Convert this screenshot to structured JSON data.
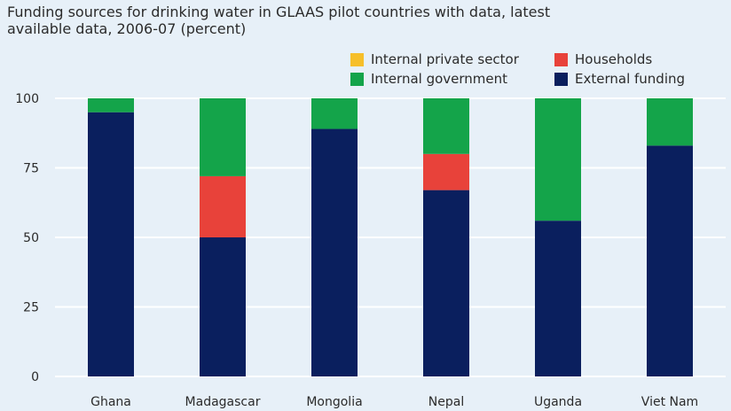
{
  "title_lines": [
    "Funding sources for drinking water in GLAAS pilot countries with data, latest",
    "available data, 2006-07 (percent)"
  ],
  "colors": {
    "internal_private": "#f6bf2a",
    "households": "#e8423a",
    "internal_government": "#14a44a",
    "external": "#0a1f5e",
    "grid": "#ffffff",
    "background": "#e7f0f8"
  },
  "chart_data": {
    "type": "bar",
    "stacked": true,
    "title": "Funding sources for drinking water in GLAAS pilot countries with data, latest available data, 2006-07 (percent)",
    "categories": [
      "Ghana",
      "Madagascar",
      "Mongolia",
      "Nepal",
      "Uganda",
      "Viet Nam"
    ],
    "series": [
      {
        "name": "External funding",
        "color": "#0a1f5e",
        "values": [
          95,
          50,
          89,
          67,
          56,
          83
        ]
      },
      {
        "name": "Households",
        "color": "#e8423a",
        "values": [
          0,
          22,
          0,
          13,
          0,
          0
        ]
      },
      {
        "name": "Internal government",
        "color": "#14a44a",
        "values": [
          5,
          28,
          11,
          20,
          44,
          17
        ]
      },
      {
        "name": "Internal private sector",
        "color": "#f6bf2a",
        "values": [
          0,
          0,
          0,
          0,
          0,
          0
        ]
      }
    ],
    "legend": [
      {
        "name": "Internal private sector",
        "color": "#f6bf2a"
      },
      {
        "name": "Households",
        "color": "#e8423a"
      },
      {
        "name": "Internal government",
        "color": "#14a44a"
      },
      {
        "name": "External funding",
        "color": "#0a1f5e"
      }
    ],
    "legend_position": "top-right",
    "yticks": [
      0,
      25,
      50,
      75,
      100
    ],
    "ylim": [
      0,
      100
    ],
    "grid": true,
    "xlabel": "",
    "ylabel": ""
  }
}
